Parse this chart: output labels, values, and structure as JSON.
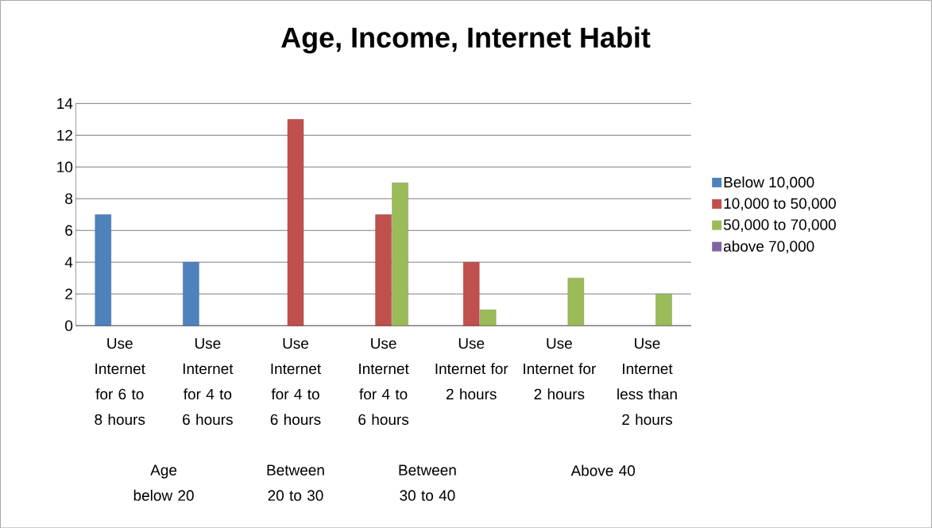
{
  "chart_data": {
    "type": "bar",
    "title": "Age, Income, Internet Habit",
    "categories": [
      "Use Internet for 6 to 8 hours",
      "Use Internet for 4 to 6 hours",
      "Use Internet for 4 to 6 hours",
      "Use Internet for 4 to 6 hours",
      "Use Internet for 2 hours",
      "Use Internet for 2 hours",
      "Use Internet less than 2 hours"
    ],
    "series": [
      {
        "name": "Below 10,000",
        "color": "#4f81bd",
        "values": [
          7,
          4,
          null,
          null,
          null,
          null,
          null
        ]
      },
      {
        "name": "10,000 to 50,000",
        "color": "#c0504d",
        "values": [
          null,
          null,
          13,
          7,
          4,
          null,
          null
        ]
      },
      {
        "name": "50,000 to 70,000",
        "color": "#9bbb59",
        "values": [
          null,
          null,
          null,
          9,
          1,
          3,
          2
        ]
      },
      {
        "name": "above 70,000",
        "color": "#8064a2",
        "values": [
          null,
          null,
          null,
          null,
          null,
          null,
          null
        ]
      }
    ],
    "annotations": [
      "Age below 20",
      "Between 20 to 30",
      "Between 30 to 40",
      "Above 40"
    ],
    "ylim": [
      0,
      14
    ],
    "yticks": [
      0,
      2,
      4,
      6,
      8,
      10,
      12,
      14
    ],
    "grid": "y",
    "legend": "right"
  }
}
